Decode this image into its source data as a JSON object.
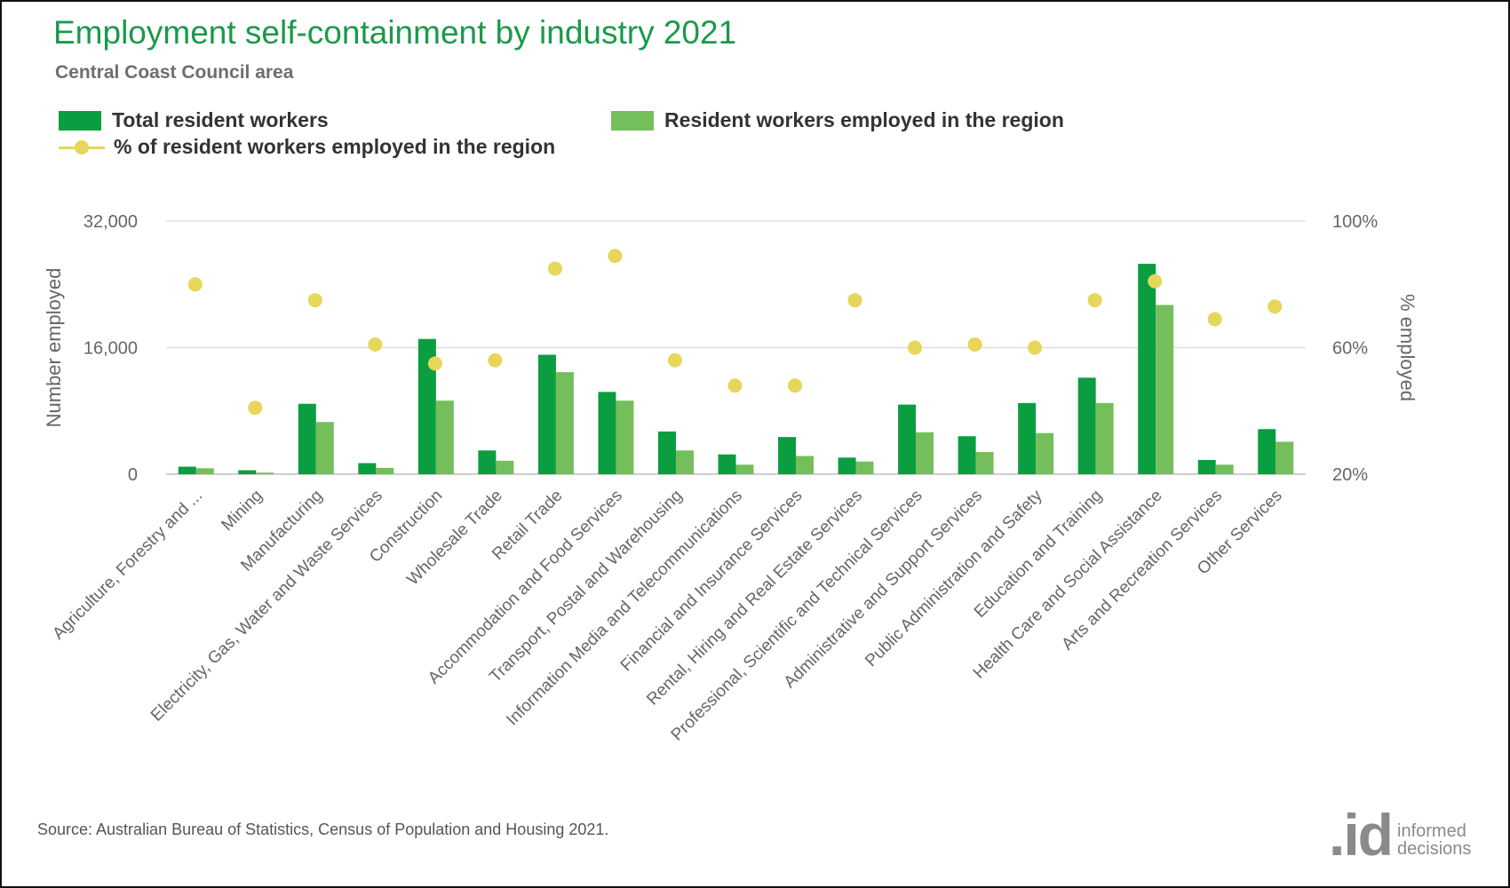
{
  "header": {
    "title": "Employment self-containment by industry 2021",
    "subtitle": "Central Coast Council area"
  },
  "legend": {
    "total": "Total resident workers",
    "employed": "Resident workers employed in the region",
    "pct": "% of resident workers employed in the region"
  },
  "colors": {
    "total": "#0a9e40",
    "employed": "#74bf5b",
    "pct": "#e6d65a",
    "title": "#1a9a4a",
    "grid": "#dddddd"
  },
  "footer": {
    "source": "Source: Australian Bureau of Statistics, Census of Population and Housing 2021.",
    "logo_mark": ".id",
    "logo_line1": "informed",
    "logo_line2": "decisions"
  },
  "chart_data": {
    "type": "bar",
    "title": "Employment self-containment by industry 2021",
    "subtitle": "Central Coast Council area",
    "ylabel_left": "Number employed",
    "ylabel_right": "% employed",
    "ylim_left": [
      0,
      32000
    ],
    "yticks_left": [
      "0",
      "16,000",
      "32,000"
    ],
    "ylim_right": [
      20,
      100
    ],
    "yticks_right": [
      "20%",
      "60%",
      "100%"
    ],
    "grid": true,
    "legend_position": "top-left",
    "categories": [
      "Agriculture, Forestry and ...",
      "Mining",
      "Manufacturing",
      "Electricity, Gas, Water and Waste Services",
      "Construction",
      "Wholesale Trade",
      "Retail Trade",
      "Accommodation and Food Services",
      "Transport, Postal and Warehousing",
      "Information Media and Telecommunications",
      "Financial and Insurance Services",
      "Rental, Hiring and Real Estate Services",
      "Professional, Scientific and Technical Services",
      "Administrative and Support Services",
      "Public Administration and Safety",
      "Education and Training",
      "Health Care and Social Assistance",
      "Arts and Recreation Services",
      "Other Services"
    ],
    "series": [
      {
        "name": "Total resident workers",
        "axis": "left",
        "kind": "bar",
        "values": [
          950,
          500,
          8900,
          1400,
          17100,
          3000,
          15100,
          10400,
          5400,
          2500,
          4700,
          2100,
          8800,
          4800,
          9000,
          12200,
          26600,
          1800,
          5700
        ]
      },
      {
        "name": "Resident workers employed in the region",
        "axis": "left",
        "kind": "bar",
        "values": [
          750,
          200,
          6600,
          800,
          9300,
          1700,
          12900,
          9300,
          3000,
          1200,
          2300,
          1600,
          5300,
          2800,
          5200,
          9000,
          21400,
          1200,
          4100
        ]
      },
      {
        "name": "% of resident workers employed in the region",
        "axis": "right",
        "kind": "scatter",
        "values": [
          80,
          41,
          75,
          61,
          55,
          56,
          85,
          89,
          56,
          48,
          48,
          75,
          60,
          61,
          60,
          75,
          81,
          69,
          73
        ]
      }
    ]
  }
}
